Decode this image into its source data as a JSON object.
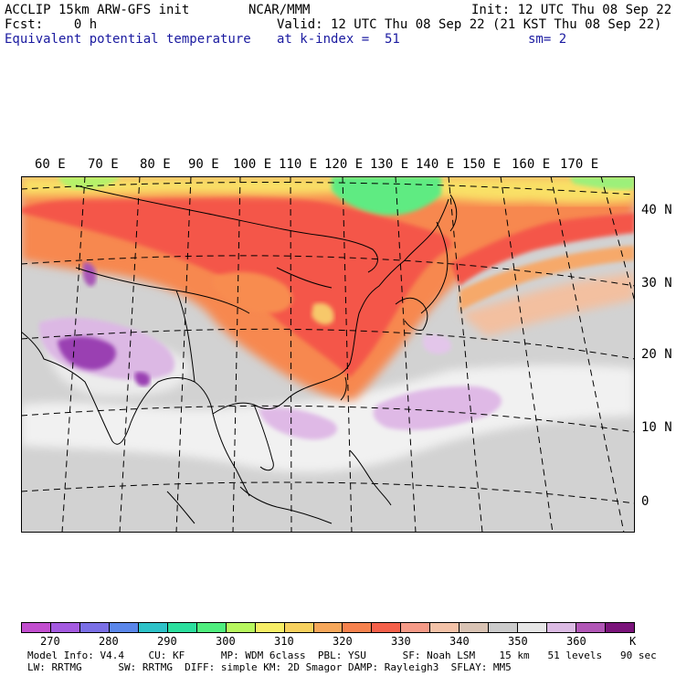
{
  "header": {
    "model": "ACCLIP 15km ARW-GFS init",
    "center": "NCAR/MMM",
    "init": "Init: 12 UTC Thu 08 Sep 22",
    "fcst": "Fcst:    0 h",
    "valid": "Valid: 12 UTC Thu 08 Sep 22 (21 KST Thu 08 Sep 22)",
    "field": "Equivalent potential temperature",
    "level": "at k-index =  51",
    "smooth": "sm= 2"
  },
  "map": {
    "lon_labels": [
      "60 E",
      "70 E",
      "80 E",
      "90 E",
      "100 E",
      "110 E",
      "120 E",
      "130 E",
      "140 E",
      "150 E",
      "160 E",
      "170 E"
    ],
    "lat_labels": [
      "40 N",
      "30 N",
      "20 N",
      "10 N",
      "0"
    ],
    "colors": {
      "land_gray": "#c8c8c8",
      "ocean_gray": "#d2d2d2",
      "white_band": "#f2f2f2",
      "red": "#f4564a",
      "orange": "#f7824e",
      "yellow": "#f9e05a",
      "green": "#5aed7e",
      "purple": "#9a3fb2",
      "light_purple": "#dfb9e6"
    }
  },
  "colorbar": {
    "colors": [
      "#c24ecf",
      "#a45ae0",
      "#7a6fe6",
      "#5a86ea",
      "#2dc2c8",
      "#2bdf9e",
      "#4fee7e",
      "#b7f75e",
      "#f7ee66",
      "#f7d15e",
      "#f6a75a",
      "#f6824e",
      "#f4604a",
      "#f59a87",
      "#f3c2a8",
      "#d9c3b4",
      "#cbcbcb",
      "#e6e6e6",
      "#dcbbe4",
      "#b156b6",
      "#7a137a"
    ],
    "ticks": [
      "270",
      "280",
      "290",
      "300",
      "310",
      "320",
      "330",
      "340",
      "350",
      "360"
    ],
    "unit": "K"
  },
  "footer": {
    "line1": "Model Info: V4.4    CU: KF      MP: WDM 6class  PBL: YSU      SF: Noah LSM    15 km   51 levels   90 sec",
    "line2": "LW: RRTMG      SW: RRTMG  DIFF: simple KM: 2D Smagor DAMP: Rayleigh3  SFLAY: MM5"
  }
}
